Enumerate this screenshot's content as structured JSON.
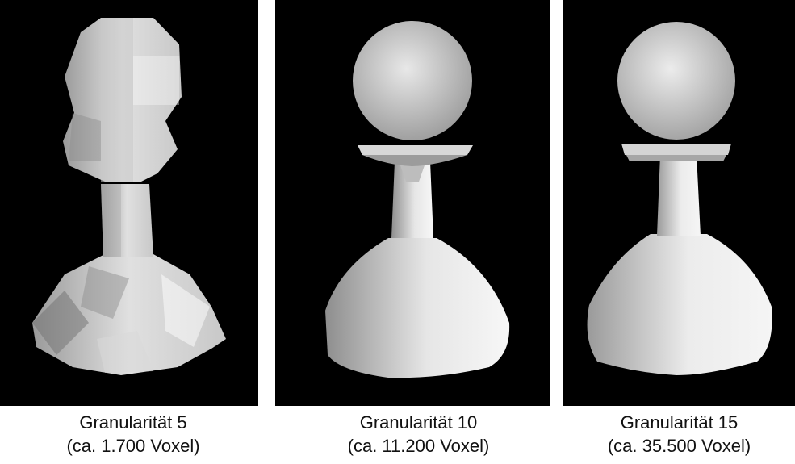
{
  "panels": [
    {
      "title": "Granularität 5",
      "subtitle": "(ca. 1.700 Voxel)"
    },
    {
      "title": "Granularität 10",
      "subtitle": "(ca. 11.200 Voxel)"
    },
    {
      "title": "Granularität 15",
      "subtitle": "(ca. 35.500 Voxel)"
    }
  ],
  "colors": {
    "background": "#000000",
    "surface_light": "#f2f2f2",
    "surface_dark": "#8a8a8a"
  },
  "icons": [
    "voxel-pawn-render-coarse",
    "voxel-pawn-render-medium",
    "voxel-pawn-render-fine"
  ]
}
